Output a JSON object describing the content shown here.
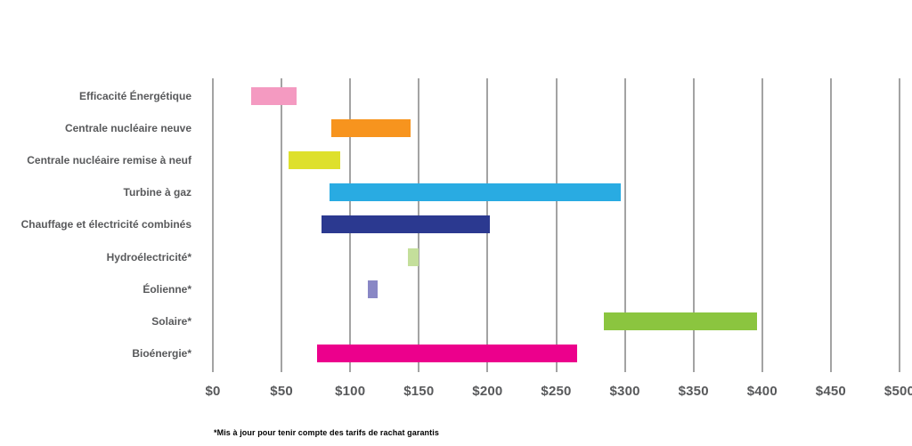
{
  "chart_data": {
    "type": "bar",
    "orientation": "horizontal-range",
    "title": "",
    "xlabel": "",
    "ylabel": "",
    "xlim": [
      0,
      500
    ],
    "grid": "vertical-only",
    "legend": "none",
    "x_ticks": [
      "$0",
      "$50",
      "$100",
      "$150",
      "$200",
      "$250",
      "$300",
      "$350",
      "$400",
      "$450",
      "$500"
    ],
    "categories": [
      "Efficacité Énergétique",
      "Centrale nucléaire neuve",
      "Centrale nucléaire remise à neuf",
      "Turbine à gaz",
      "Chauffage et électricité combinés",
      "Hydroélectricité*",
      "Éolienne*",
      "Solaire*",
      "Bioénergie*"
    ],
    "bars": [
      {
        "label": "Efficacité Énergétique",
        "min": 28,
        "max": 61,
        "color": "#f49ac1"
      },
      {
        "label": "Centrale nucléaire neuve",
        "min": 86,
        "max": 144,
        "color": "#f7941e"
      },
      {
        "label": "Centrale nucléaire remise à neuf",
        "min": 55,
        "max": 93,
        "color": "#dee02c"
      },
      {
        "label": "Turbine à gaz",
        "min": 85,
        "max": 297,
        "color": "#29abe2"
      },
      {
        "label": "Chauffage et électricité combinés",
        "min": 79,
        "max": 202,
        "color": "#2b3990"
      },
      {
        "label": "Hydroélectricité*",
        "min": 142,
        "max": 150,
        "color": "#c4df9b"
      },
      {
        "label": "Éolienne*",
        "min": 113,
        "max": 120,
        "color": "#8987c5"
      },
      {
        "label": "Solaire*",
        "min": 285,
        "max": 396,
        "color": "#8bc53f"
      },
      {
        "label": "Bioénergie*",
        "min": 76,
        "max": 265,
        "color": "#ec008c"
      }
    ],
    "footnote": "*Mis à jour pour tenir compte des tarifs de rachat garantis"
  },
  "style": {
    "text_color": "#58595b",
    "gridline_color": "#a3a3a3",
    "background": "#ffffff"
  }
}
